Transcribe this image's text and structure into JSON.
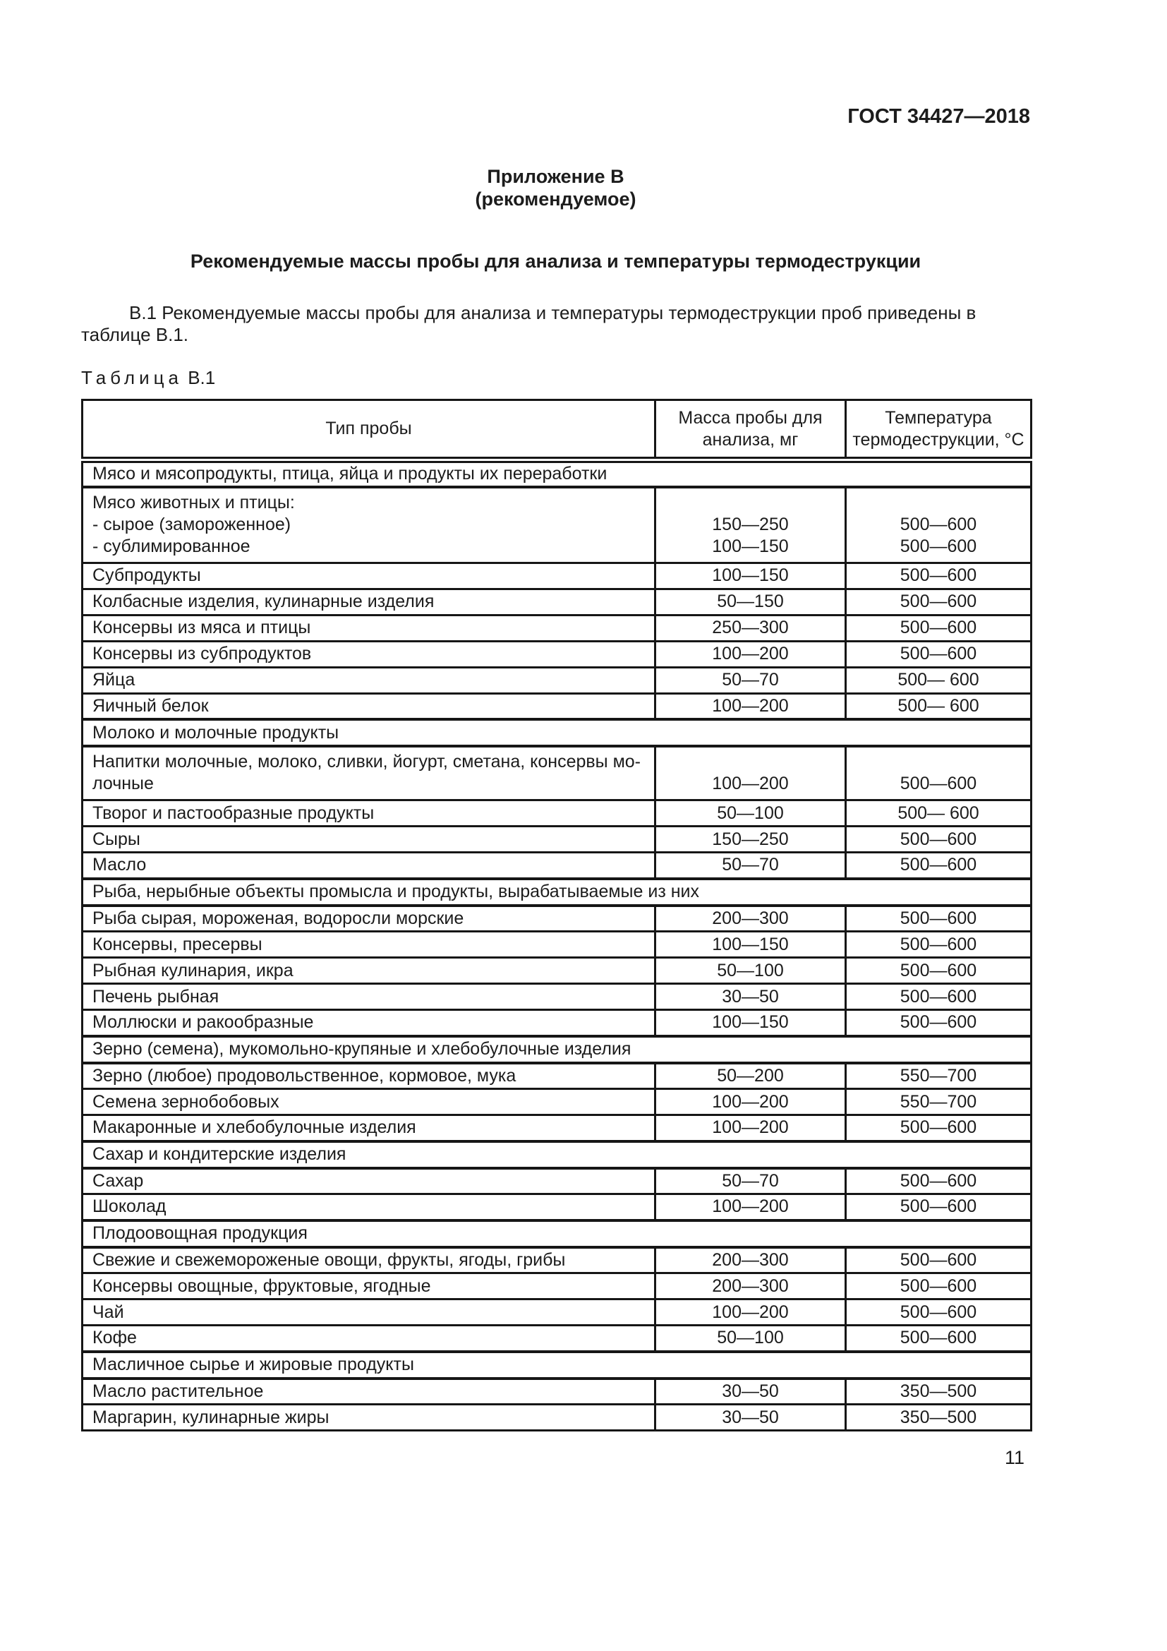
{
  "page": {
    "standard_ref": "ГОСТ 34427—2018",
    "appendix_title": "Приложение В",
    "appendix_subtitle": "(рекомендуемое)",
    "section_title": "Рекомендуемые массы пробы для анализа и температуры термодеструкции",
    "paragraph": "В.1 Рекомендуемые массы пробы для анализа и температуры термодеструкции проб приведены в таблице В.1.",
    "table_label_word": "Таблица",
    "table_label_number": "В.1",
    "page_number": "11"
  },
  "colors": {
    "text": "#1c1c1c",
    "border": "#161616",
    "background": "#ffffff"
  },
  "table": {
    "columns": [
      "Тип пробы",
      [
        "Масса пробы для",
        "анализа, мг"
      ],
      [
        "Температура",
        "термодеструкции, °С"
      ]
    ],
    "rows": [
      {
        "type": "section",
        "name": "Мясо и мясопродукты, птица, яйца и продукты их переработки"
      },
      {
        "type": "data",
        "name": [
          "Мясо животных и птицы:",
          "- сырое (замороженное)",
          "- сублимированное"
        ],
        "mass": [
          "",
          "150—250",
          "100—150"
        ],
        "temp": [
          "",
          "500—600",
          "500—600"
        ]
      },
      {
        "type": "data",
        "name": "Субпродукты",
        "mass": "100—150",
        "temp": "500—600"
      },
      {
        "type": "data",
        "name": "Колбасные изделия, кулинарные изделия",
        "mass": "50—150",
        "temp": "500—600"
      },
      {
        "type": "data",
        "name": "Консервы из мяса и птицы",
        "mass": "250—300",
        "temp": "500—600"
      },
      {
        "type": "data",
        "name": "Консервы из субпродуктов",
        "mass": "100—200",
        "temp": "500—600"
      },
      {
        "type": "data",
        "name": "Яйца",
        "mass": "50—70",
        "temp": "500— 600"
      },
      {
        "type": "data",
        "name": "Яичный белок",
        "mass": "100—200",
        "temp": "500— 600"
      },
      {
        "type": "section",
        "name": "Молоко и молочные продукты"
      },
      {
        "type": "data",
        "name": [
          "Напитки молочные, молоко, сливки, йогурт, сметана, консервы мо-",
          "лочные"
        ],
        "mass": [
          "",
          "100—200"
        ],
        "temp": [
          "",
          "500—600"
        ]
      },
      {
        "type": "data",
        "name": "Творог и пастообразные продукты",
        "mass": "50—100",
        "temp": "500— 600"
      },
      {
        "type": "data",
        "name": "Сыры",
        "mass": "150—250",
        "temp": "500—600"
      },
      {
        "type": "data",
        "name": "Масло",
        "mass": "50—70",
        "temp": "500—600"
      },
      {
        "type": "section",
        "name": "Рыба, нерыбные объекты промысла и продукты, вырабатываемые из них"
      },
      {
        "type": "data",
        "name": "Рыба сырая, мороженая, водоросли морские",
        "mass": "200—300",
        "temp": "500—600"
      },
      {
        "type": "data",
        "name": "Консервы, пресервы",
        "mass": "100—150",
        "temp": "500—600"
      },
      {
        "type": "data",
        "name": "Рыбная кулинария, икра",
        "mass": "50—100",
        "temp": "500—600"
      },
      {
        "type": "data",
        "name": "Печень рыбная",
        "mass": "30—50",
        "temp": "500—600"
      },
      {
        "type": "data",
        "name": "Моллюски и ракообразные",
        "mass": "100—150",
        "temp": "500—600"
      },
      {
        "type": "section",
        "name": "Зерно (семена), мукомольно-крупяные и хлебобулочные изделия"
      },
      {
        "type": "data",
        "name": "Зерно (любое) продовольственное, кормовое, мука",
        "mass": "50—200",
        "temp": "550—700"
      },
      {
        "type": "data",
        "name": "Семена зернобобовых",
        "mass": "100—200",
        "temp": "550—700"
      },
      {
        "type": "data",
        "name": "Макаронные и хлебобулочные изделия",
        "mass": "100—200",
        "temp": "500—600"
      },
      {
        "type": "section",
        "name": "Сахар и кондитерские изделия"
      },
      {
        "type": "data",
        "name": "Сахар",
        "mass": "50—70",
        "temp": "500—600"
      },
      {
        "type": "data",
        "name": "Шоколад",
        "mass": "100—200",
        "temp": "500—600"
      },
      {
        "type": "section",
        "name": "Плодоовощная продукция"
      },
      {
        "type": "data",
        "name": "Свежие и свежемороженые овощи, фрукты, ягоды, грибы",
        "mass": "200—300",
        "temp": "500—600"
      },
      {
        "type": "data",
        "name": "Консервы овощные, фруктовые, ягодные",
        "mass": "200—300",
        "temp": "500—600"
      },
      {
        "type": "data",
        "name": "Чай",
        "mass": "100—200",
        "temp": "500—600"
      },
      {
        "type": "data",
        "name": "Кофе",
        "mass": "50—100",
        "temp": "500—600"
      },
      {
        "type": "section",
        "name": "Масличное сырье и жировые продукты"
      },
      {
        "type": "data",
        "name": "Масло растительное",
        "mass": "30—50",
        "temp": "350—500"
      },
      {
        "type": "data",
        "name": "Маргарин, кулинарные жиры",
        "mass": "30—50",
        "temp": "350—500"
      }
    ]
  }
}
